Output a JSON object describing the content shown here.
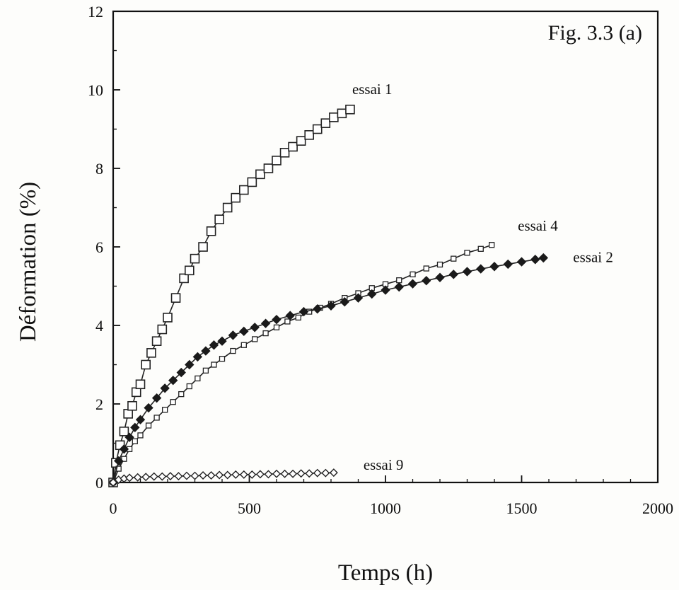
{
  "chart_data": {
    "type": "scatter",
    "title": "Fig. 3.3 (a)",
    "xlabel": "Temps (h)",
    "ylabel": "Déformation (%)",
    "xlim": [
      0,
      2000
    ],
    "ylim": [
      0,
      12
    ],
    "xticks": [
      0,
      500,
      1000,
      1500,
      2000
    ],
    "yticks": [
      0,
      2,
      4,
      6,
      8,
      10,
      12
    ],
    "xtick_labels": [
      "0",
      "500",
      "1000",
      "1500",
      "2000"
    ],
    "ytick_labels": [
      "0",
      "2",
      "4",
      "6",
      "8",
      "10",
      "12"
    ],
    "grid": false,
    "legend": "none",
    "series": [
      {
        "name": "essai 1",
        "marker": "open-square-large",
        "x": [
          0,
          10,
          25,
          40,
          55,
          70,
          85,
          100,
          120,
          140,
          160,
          180,
          200,
          230,
          260,
          280,
          300,
          330,
          360,
          390,
          420,
          450,
          480,
          510,
          540,
          570,
          600,
          630,
          660,
          690,
          720,
          750,
          780,
          810,
          840,
          870
        ],
        "y": [
          0,
          0.5,
          0.95,
          1.3,
          1.75,
          1.95,
          2.3,
          2.5,
          3.0,
          3.3,
          3.6,
          3.9,
          4.2,
          4.7,
          5.2,
          5.4,
          5.7,
          6.0,
          6.4,
          6.7,
          7.0,
          7.25,
          7.45,
          7.65,
          7.85,
          8.0,
          8.2,
          8.4,
          8.55,
          8.7,
          8.85,
          9.0,
          9.15,
          9.3,
          9.4,
          9.5
        ]
      },
      {
        "name": "essai 4",
        "marker": "open-square-small",
        "x": [
          0,
          20,
          40,
          60,
          80,
          100,
          130,
          160,
          190,
          220,
          250,
          280,
          310,
          340,
          370,
          400,
          440,
          480,
          520,
          560,
          600,
          640,
          680,
          720,
          760,
          800,
          850,
          900,
          950,
          1000,
          1050,
          1100,
          1150,
          1200,
          1250,
          1300,
          1350,
          1390
        ],
        "y": [
          0,
          0.35,
          0.6,
          0.85,
          1.05,
          1.2,
          1.45,
          1.65,
          1.85,
          2.05,
          2.25,
          2.45,
          2.65,
          2.85,
          3.0,
          3.15,
          3.35,
          3.5,
          3.65,
          3.8,
          3.95,
          4.1,
          4.2,
          4.35,
          4.45,
          4.55,
          4.7,
          4.82,
          4.95,
          5.05,
          5.15,
          5.3,
          5.45,
          5.55,
          5.7,
          5.85,
          5.95,
          6.05
        ]
      },
      {
        "name": "essai 2",
        "marker": "filled-diamond",
        "x": [
          0,
          20,
          40,
          60,
          80,
          100,
          130,
          160,
          190,
          220,
          250,
          280,
          310,
          340,
          370,
          400,
          440,
          480,
          520,
          560,
          600,
          650,
          700,
          750,
          800,
          850,
          900,
          950,
          1000,
          1050,
          1100,
          1150,
          1200,
          1250,
          1300,
          1350,
          1400,
          1450,
          1500,
          1550,
          1580
        ],
        "y": [
          0,
          0.55,
          0.85,
          1.15,
          1.4,
          1.6,
          1.9,
          2.15,
          2.4,
          2.6,
          2.8,
          3.0,
          3.2,
          3.35,
          3.5,
          3.6,
          3.75,
          3.85,
          3.95,
          4.05,
          4.15,
          4.25,
          4.35,
          4.42,
          4.5,
          4.6,
          4.7,
          4.8,
          4.9,
          4.98,
          5.06,
          5.14,
          5.22,
          5.3,
          5.37,
          5.44,
          5.5,
          5.56,
          5.62,
          5.68,
          5.72
        ]
      },
      {
        "name": "essai 9",
        "marker": "open-diamond",
        "x": [
          0,
          20,
          40,
          60,
          90,
          120,
          150,
          180,
          210,
          240,
          270,
          300,
          330,
          360,
          390,
          420,
          450,
          480,
          510,
          540,
          570,
          600,
          630,
          660,
          690,
          720,
          750,
          780,
          810
        ],
        "y": [
          0,
          0.07,
          0.1,
          0.12,
          0.13,
          0.14,
          0.15,
          0.15,
          0.16,
          0.16,
          0.17,
          0.17,
          0.18,
          0.18,
          0.19,
          0.19,
          0.2,
          0.2,
          0.2,
          0.21,
          0.21,
          0.22,
          0.22,
          0.22,
          0.23,
          0.23,
          0.24,
          0.24,
          0.25
        ]
      }
    ]
  }
}
